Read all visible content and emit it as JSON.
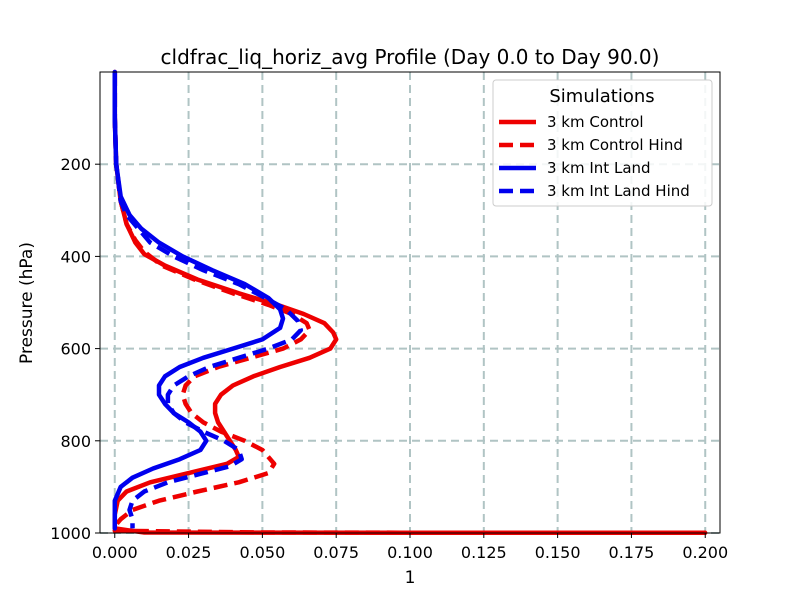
{
  "chart_data": {
    "type": "line",
    "title": "cldfrac_liq_horiz_avg Profile (Day 0.0 to Day 90.0)",
    "xlabel": "1",
    "ylabel": "Pressure (hPa)",
    "xlim": [
      -0.005,
      0.205
    ],
    "ylim": [
      1000,
      0
    ],
    "y_inverted": true,
    "grid": true,
    "x_ticks": [
      0.0,
      0.025,
      0.05,
      0.075,
      0.1,
      0.125,
      0.15,
      0.175,
      0.2
    ],
    "x_tick_labels": [
      "0.000",
      "0.025",
      "0.050",
      "0.075",
      "0.100",
      "0.125",
      "0.150",
      "0.175",
      "0.200"
    ],
    "y_ticks": [
      200,
      400,
      600,
      800,
      1000
    ],
    "y_tick_labels": [
      "200",
      "400",
      "600",
      "800",
      "1000"
    ],
    "legend": {
      "title": "Simulations",
      "position": "upper right"
    },
    "series": [
      {
        "name": "3 km Control",
        "color": "#ee0000",
        "linestyle": "solid",
        "points": [
          [
            0.0,
            0
          ],
          [
            0.0,
            100
          ],
          [
            0.0005,
            200
          ],
          [
            0.002,
            280
          ],
          [
            0.004,
            330
          ],
          [
            0.007,
            370
          ],
          [
            0.01,
            395
          ],
          [
            0.017,
            420
          ],
          [
            0.028,
            450
          ],
          [
            0.042,
            480
          ],
          [
            0.055,
            505
          ],
          [
            0.064,
            525
          ],
          [
            0.071,
            545
          ],
          [
            0.074,
            565
          ],
          [
            0.075,
            580
          ],
          [
            0.073,
            600
          ],
          [
            0.066,
            620
          ],
          [
            0.056,
            640
          ],
          [
            0.047,
            660
          ],
          [
            0.04,
            680
          ],
          [
            0.036,
            700
          ],
          [
            0.034,
            720
          ],
          [
            0.034,
            740
          ],
          [
            0.035,
            760
          ],
          [
            0.037,
            780
          ],
          [
            0.039,
            800
          ],
          [
            0.041,
            820
          ],
          [
            0.042,
            835
          ],
          [
            0.038,
            850
          ],
          [
            0.025,
            870
          ],
          [
            0.012,
            890
          ],
          [
            0.004,
            910
          ],
          [
            0.001,
            930
          ],
          [
            0.0,
            960
          ],
          [
            0.0,
            990
          ],
          [
            0.01,
            999
          ],
          [
            0.1,
            999.5
          ],
          [
            0.2,
            999.5
          ]
        ]
      },
      {
        "name": "3 km Control Hind",
        "color": "#ee0000",
        "linestyle": "dashed",
        "points": [
          [
            0.0,
            0
          ],
          [
            0.0,
            100
          ],
          [
            0.0005,
            200
          ],
          [
            0.002,
            280
          ],
          [
            0.004,
            330
          ],
          [
            0.007,
            365
          ],
          [
            0.01,
            390
          ],
          [
            0.016,
            420
          ],
          [
            0.027,
            450
          ],
          [
            0.04,
            480
          ],
          [
            0.052,
            505
          ],
          [
            0.06,
            525
          ],
          [
            0.065,
            545
          ],
          [
            0.066,
            560
          ],
          [
            0.063,
            580
          ],
          [
            0.057,
            600
          ],
          [
            0.046,
            620
          ],
          [
            0.035,
            640
          ],
          [
            0.027,
            660
          ],
          [
            0.024,
            680
          ],
          [
            0.023,
            700
          ],
          [
            0.024,
            720
          ],
          [
            0.026,
            740
          ],
          [
            0.03,
            760
          ],
          [
            0.036,
            780
          ],
          [
            0.044,
            800
          ],
          [
            0.05,
            820
          ],
          [
            0.054,
            850
          ],
          [
            0.052,
            870
          ],
          [
            0.042,
            890
          ],
          [
            0.028,
            910
          ],
          [
            0.015,
            930
          ],
          [
            0.006,
            950
          ],
          [
            0.002,
            970
          ],
          [
            0.0,
            985
          ],
          [
            0.0,
            995
          ],
          [
            0.05,
            999
          ],
          [
            0.12,
            999.5
          ],
          [
            0.195,
            999.5
          ]
        ]
      },
      {
        "name": "3 km Int Land",
        "color": "#0000ee",
        "linestyle": "solid",
        "points": [
          [
            0.0,
            0
          ],
          [
            0.0,
            100
          ],
          [
            0.0005,
            200
          ],
          [
            0.002,
            270
          ],
          [
            0.005,
            310
          ],
          [
            0.009,
            340
          ],
          [
            0.015,
            370
          ],
          [
            0.023,
            400
          ],
          [
            0.033,
            430
          ],
          [
            0.044,
            460
          ],
          [
            0.052,
            490
          ],
          [
            0.056,
            515
          ],
          [
            0.057,
            535
          ],
          [
            0.056,
            555
          ],
          [
            0.05,
            580
          ],
          [
            0.04,
            600
          ],
          [
            0.03,
            620
          ],
          [
            0.022,
            640
          ],
          [
            0.017,
            660
          ],
          [
            0.015,
            680
          ],
          [
            0.015,
            700
          ],
          [
            0.017,
            720
          ],
          [
            0.02,
            740
          ],
          [
            0.025,
            760
          ],
          [
            0.029,
            780
          ],
          [
            0.031,
            800
          ],
          [
            0.029,
            820
          ],
          [
            0.022,
            840
          ],
          [
            0.013,
            860
          ],
          [
            0.006,
            880
          ],
          [
            0.002,
            900
          ],
          [
            0.0,
            930
          ],
          [
            0.0,
            960
          ],
          [
            0.0,
            990
          ]
        ]
      },
      {
        "name": "3 km Int Land Hind",
        "color": "#0000ee",
        "linestyle": "dashed",
        "points": [
          [
            0.0,
            0
          ],
          [
            0.0,
            100
          ],
          [
            0.0005,
            200
          ],
          [
            0.002,
            280
          ],
          [
            0.004,
            310
          ],
          [
            0.008,
            340
          ],
          [
            0.012,
            370
          ],
          [
            0.02,
            400
          ],
          [
            0.03,
            430
          ],
          [
            0.042,
            460
          ],
          [
            0.051,
            490
          ],
          [
            0.058,
            515
          ],
          [
            0.062,
            540
          ],
          [
            0.063,
            560
          ],
          [
            0.06,
            580
          ],
          [
            0.052,
            600
          ],
          [
            0.042,
            620
          ],
          [
            0.032,
            640
          ],
          [
            0.025,
            660
          ],
          [
            0.02,
            680
          ],
          [
            0.018,
            700
          ],
          [
            0.018,
            720
          ],
          [
            0.02,
            740
          ],
          [
            0.024,
            760
          ],
          [
            0.03,
            780
          ],
          [
            0.037,
            800
          ],
          [
            0.042,
            820
          ],
          [
            0.043,
            840
          ],
          [
            0.039,
            855
          ],
          [
            0.03,
            870
          ],
          [
            0.018,
            890
          ],
          [
            0.01,
            910
          ],
          [
            0.006,
            930
          ],
          [
            0.005,
            950
          ],
          [
            0.006,
            970
          ],
          [
            0.006,
            990
          ]
        ]
      }
    ]
  }
}
